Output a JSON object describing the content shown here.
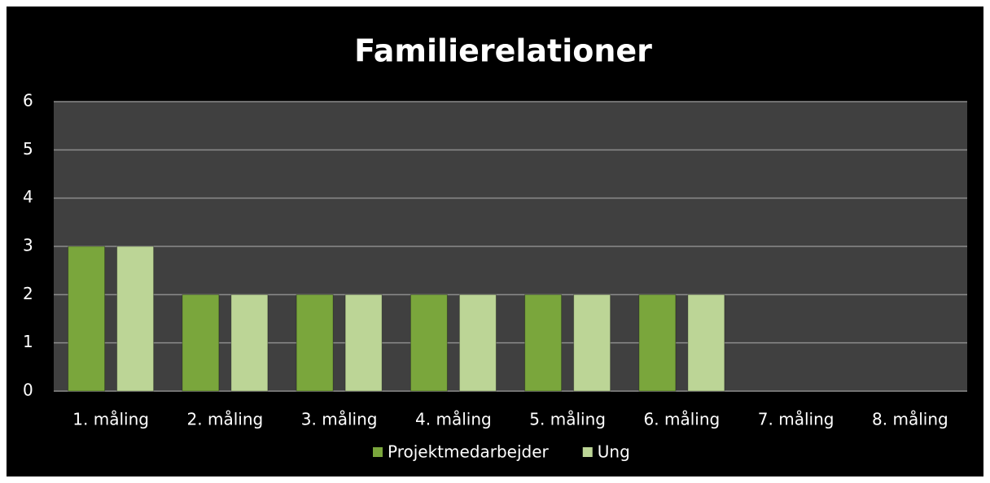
{
  "chart_data": {
    "type": "bar",
    "title": "Familierelationer",
    "categories": [
      "1. måling",
      "2. måling",
      "3. måling",
      "4. måling",
      "5. måling",
      "6. måling",
      "7. måling",
      "8. måling"
    ],
    "series": [
      {
        "name": "Projektmedarbejder",
        "color": "#7aa63c",
        "values": [
          3,
          2,
          2,
          2,
          2,
          2,
          null,
          null
        ]
      },
      {
        "name": "Ung",
        "color": "#bcd596",
        "values": [
          3,
          2,
          2,
          2,
          2,
          2,
          null,
          null
        ]
      }
    ],
    "ylim": [
      0,
      6
    ],
    "yticks": [
      0,
      1,
      2,
      3,
      4,
      5,
      6
    ],
    "grid": true,
    "legend": "bottom"
  }
}
